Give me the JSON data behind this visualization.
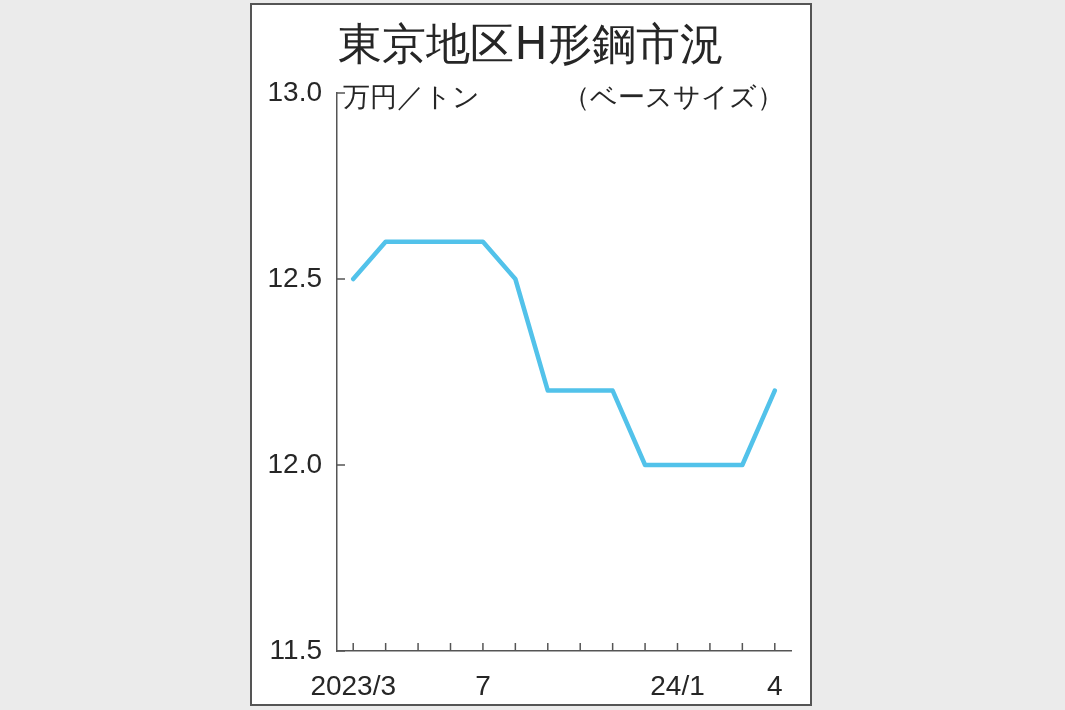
{
  "chart_data": {
    "type": "line",
    "title": "東京地区H形鋼市況",
    "ylabel": "万円／トン",
    "subtitle": "（ベースサイズ）",
    "categories": [
      "2023/3",
      null,
      null,
      null,
      "7",
      null,
      null,
      null,
      null,
      null,
      "24/1",
      null,
      null,
      "4"
    ],
    "series": [
      {
        "color": "#52c2ea",
        "values": [
          12.5,
          12.6,
          12.6,
          12.6,
          12.6,
          12.5,
          12.2,
          12.2,
          12.2,
          12.0,
          12.0,
          12.0,
          12.0,
          12.2
        ]
      }
    ],
    "ylim": [
      11.5,
      13.0
    ],
    "yticks": [
      11.5,
      {
        "value": 12,
        "label": "12.0"
      },
      12.5,
      {
        "value": 13,
        "label": "13.0"
      }
    ],
    "marker": "none",
    "legend": false
  }
}
